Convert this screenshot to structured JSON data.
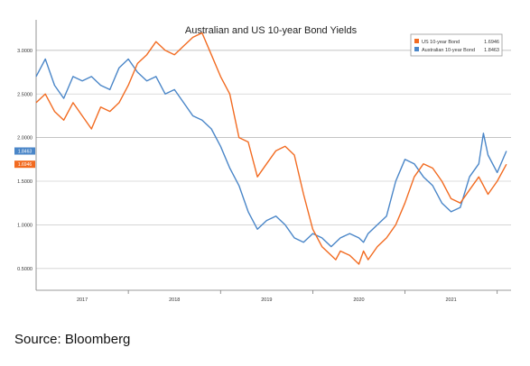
{
  "chart_data": {
    "type": "line",
    "title": "Australian and US 10-year Bond Yields",
    "xlabel": "",
    "ylabel": "",
    "x_tick_labels": [
      "2017",
      "2018",
      "2019",
      "2020",
      "2021"
    ],
    "y_tick_labels": [
      "0.5000",
      "1.0000",
      "1.5000",
      "2.0000",
      "2.5000",
      "3.0000"
    ],
    "y_ticks": [
      0.5,
      1.0,
      1.5,
      2.0,
      2.5,
      3.0
    ],
    "ylim": [
      0.25,
      3.35
    ],
    "xlim": [
      2016.5,
      2021.65
    ],
    "grid": true,
    "legend_position": "top-right",
    "series": [
      {
        "name": "US 10-year Bond",
        "value_label": "1.6946",
        "last_value_badge": "1.6946",
        "color": "#f26b21",
        "x": [
          2016.5,
          2016.6,
          2016.7,
          2016.8,
          2016.9,
          2017.0,
          2017.1,
          2017.2,
          2017.3,
          2017.4,
          2017.5,
          2017.6,
          2017.7,
          2017.8,
          2017.9,
          2018.0,
          2018.1,
          2018.2,
          2018.3,
          2018.4,
          2018.5,
          2018.6,
          2018.7,
          2018.8,
          2018.9,
          2019.0,
          2019.1,
          2019.2,
          2019.3,
          2019.4,
          2019.5,
          2019.6,
          2019.7,
          2019.75,
          2019.8,
          2019.9,
          2020.0,
          2020.05,
          2020.1,
          2020.2,
          2020.3,
          2020.4,
          2020.5,
          2020.6,
          2020.7,
          2020.8,
          2020.9,
          2021.0,
          2021.1,
          2021.2,
          2021.3,
          2021.4,
          2021.5,
          2021.6
        ],
        "values": [
          2.4,
          2.5,
          2.3,
          2.2,
          2.4,
          2.25,
          2.1,
          2.35,
          2.3,
          2.4,
          2.6,
          2.85,
          2.95,
          3.1,
          3.0,
          2.95,
          3.05,
          3.15,
          3.2,
          2.95,
          2.7,
          2.5,
          2.0,
          1.95,
          1.55,
          1.7,
          1.85,
          1.9,
          1.8,
          1.35,
          0.95,
          0.75,
          0.65,
          0.6,
          0.7,
          0.65,
          0.55,
          0.7,
          0.6,
          0.75,
          0.85,
          1.0,
          1.25,
          1.55,
          1.7,
          1.65,
          1.5,
          1.3,
          1.25,
          1.4,
          1.55,
          1.35,
          1.5,
          1.6946
        ]
      },
      {
        "name": "Australian 10-year Bond",
        "value_label": "1.8463",
        "last_value_badge": "1.8463",
        "color": "#4a86c8",
        "x": [
          2016.5,
          2016.6,
          2016.7,
          2016.8,
          2016.9,
          2017.0,
          2017.1,
          2017.2,
          2017.3,
          2017.4,
          2017.5,
          2017.6,
          2017.7,
          2017.8,
          2017.9,
          2018.0,
          2018.1,
          2018.2,
          2018.3,
          2018.4,
          2018.5,
          2018.6,
          2018.7,
          2018.8,
          2018.9,
          2019.0,
          2019.1,
          2019.2,
          2019.3,
          2019.4,
          2019.5,
          2019.6,
          2019.7,
          2019.75,
          2019.8,
          2019.9,
          2020.0,
          2020.05,
          2020.1,
          2020.2,
          2020.3,
          2020.4,
          2020.5,
          2020.6,
          2020.7,
          2020.8,
          2020.9,
          2021.0,
          2021.1,
          2021.2,
          2021.3,
          2021.35,
          2021.4,
          2021.5,
          2021.6
        ],
        "values": [
          2.7,
          2.9,
          2.6,
          2.45,
          2.7,
          2.65,
          2.7,
          2.6,
          2.55,
          2.8,
          2.9,
          2.75,
          2.65,
          2.7,
          2.5,
          2.55,
          2.4,
          2.25,
          2.2,
          2.1,
          1.9,
          1.65,
          1.45,
          1.15,
          0.95,
          1.05,
          1.1,
          1.0,
          0.85,
          0.8,
          0.9,
          0.85,
          0.75,
          0.8,
          0.85,
          0.9,
          0.85,
          0.8,
          0.9,
          1.0,
          1.1,
          1.5,
          1.75,
          1.7,
          1.55,
          1.45,
          1.25,
          1.15,
          1.2,
          1.55,
          1.7,
          2.05,
          1.8,
          1.6,
          1.8463
        ]
      }
    ]
  },
  "source_text": "Source: Bloomberg"
}
